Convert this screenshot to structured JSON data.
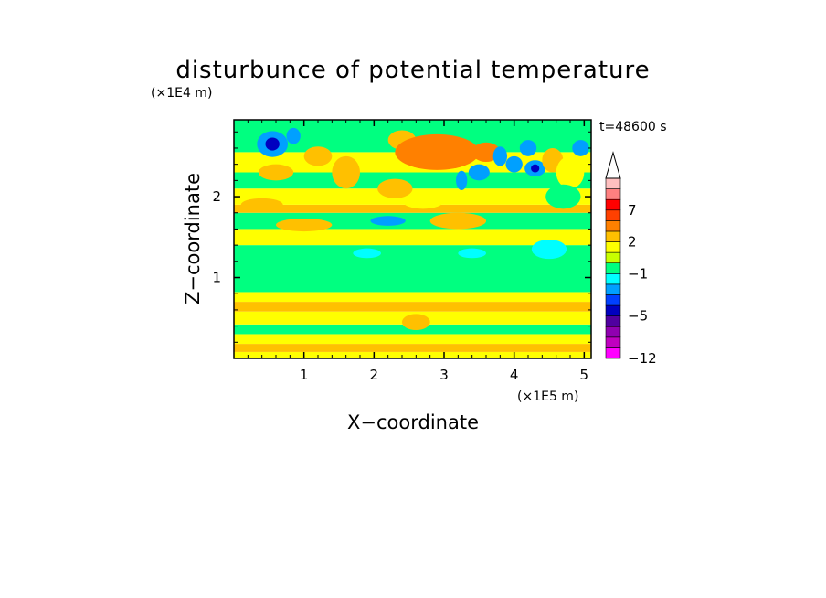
{
  "chart_data": {
    "type": "heatmap",
    "title": "disturbunce of potential temperature",
    "time_label": "t=48600 s",
    "xlabel": "X−coordinate",
    "ylabel": "Z−coordinate",
    "x_unit": "(×1E5 m)",
    "y_unit": "(×1E4 m)",
    "xlim": [
      0,
      5.1
    ],
    "ylim": [
      0,
      2.95
    ],
    "x_ticks": [
      1,
      2,
      3,
      4,
      5
    ],
    "x_tick_labels": [
      "1",
      "2",
      "3",
      "4",
      "5"
    ],
    "y_ticks": [
      1,
      2
    ],
    "y_tick_labels": [
      "1",
      "2"
    ],
    "x_minor_step": 0.2,
    "y_minor_step": 0.2,
    "bands": [
      {
        "z0": 0.0,
        "z1": 0.08,
        "level": 1
      },
      {
        "z0": 0.08,
        "z1": 0.18,
        "level": 2
      },
      {
        "z0": 0.18,
        "z1": 0.3,
        "level": 1
      },
      {
        "z0": 0.3,
        "z1": 0.42,
        "level": -1
      },
      {
        "z0": 0.42,
        "z1": 0.58,
        "level": 1
      },
      {
        "z0": 0.58,
        "z1": 0.7,
        "level": 2
      },
      {
        "z0": 0.7,
        "z1": 0.82,
        "level": 1
      },
      {
        "z0": 0.82,
        "z1": 1.4,
        "level": -1
      },
      {
        "z0": 1.4,
        "z1": 1.6,
        "level": 1
      },
      {
        "z0": 1.6,
        "z1": 1.8,
        "level": -1
      },
      {
        "z0": 1.8,
        "z1": 1.9,
        "level": 2
      },
      {
        "z0": 1.9,
        "z1": 2.1,
        "level": 1
      },
      {
        "z0": 2.1,
        "z1": 2.3,
        "level": -1
      },
      {
        "z0": 2.3,
        "z1": 2.55,
        "level": 1
      },
      {
        "z0": 2.55,
        "z1": 2.95,
        "level": -1
      }
    ],
    "features": [
      {
        "x": 0.55,
        "z": 2.65,
        "rx": 0.22,
        "rz": 0.16,
        "level": -3
      },
      {
        "x": 0.55,
        "z": 2.65,
        "rx": 0.1,
        "rz": 0.08,
        "level": -5
      },
      {
        "x": 0.85,
        "z": 2.75,
        "rx": 0.1,
        "rz": 0.1,
        "level": -3
      },
      {
        "x": 0.6,
        "z": 2.3,
        "rx": 0.25,
        "rz": 0.1,
        "level": 2
      },
      {
        "x": 1.2,
        "z": 2.5,
        "rx": 0.2,
        "rz": 0.12,
        "level": 2
      },
      {
        "x": 1.6,
        "z": 2.3,
        "rx": 0.2,
        "rz": 0.2,
        "level": 2
      },
      {
        "x": 2.3,
        "z": 2.1,
        "rx": 0.25,
        "rz": 0.12,
        "level": 2
      },
      {
        "x": 2.4,
        "z": 2.7,
        "rx": 0.2,
        "rz": 0.12,
        "level": 2
      },
      {
        "x": 2.9,
        "z": 2.55,
        "rx": 0.6,
        "rz": 0.22,
        "level": 3
      },
      {
        "x": 3.0,
        "z": 2.6,
        "rx": 0.35,
        "rz": 0.1,
        "level": 4
      },
      {
        "x": 3.6,
        "z": 2.55,
        "rx": 0.2,
        "rz": 0.12,
        "level": 3
      },
      {
        "x": 3.2,
        "z": 1.7,
        "rx": 0.4,
        "rz": 0.1,
        "level": 2
      },
      {
        "x": 2.2,
        "z": 1.7,
        "rx": 0.25,
        "rz": 0.06,
        "level": -3
      },
      {
        "x": 3.25,
        "z": 2.2,
        "rx": 0.08,
        "rz": 0.12,
        "level": -3
      },
      {
        "x": 3.5,
        "z": 2.3,
        "rx": 0.15,
        "rz": 0.1,
        "level": -3
      },
      {
        "x": 3.8,
        "z": 2.5,
        "rx": 0.1,
        "rz": 0.12,
        "level": -3
      },
      {
        "x": 4.0,
        "z": 2.4,
        "rx": 0.12,
        "rz": 0.1,
        "level": -3
      },
      {
        "x": 4.2,
        "z": 2.6,
        "rx": 0.12,
        "rz": 0.1,
        "level": -3
      },
      {
        "x": 4.3,
        "z": 2.35,
        "rx": 0.15,
        "rz": 0.1,
        "level": -3
      },
      {
        "x": 4.3,
        "z": 2.35,
        "rx": 0.06,
        "rz": 0.05,
        "level": -5
      },
      {
        "x": 4.55,
        "z": 2.45,
        "rx": 0.15,
        "rz": 0.15,
        "level": 2
      },
      {
        "x": 4.8,
        "z": 2.3,
        "rx": 0.2,
        "rz": 0.2,
        "level": 1
      },
      {
        "x": 4.95,
        "z": 2.6,
        "rx": 0.12,
        "rz": 0.1,
        "level": -3
      },
      {
        "x": 4.7,
        "z": 2.0,
        "rx": 0.25,
        "rz": 0.15,
        "level": -1
      },
      {
        "x": 4.5,
        "z": 1.35,
        "rx": 0.25,
        "rz": 0.12,
        "level": -2
      },
      {
        "x": 1.9,
        "z": 1.3,
        "rx": 0.2,
        "rz": 0.06,
        "level": -2
      },
      {
        "x": 3.4,
        "z": 1.3,
        "rx": 0.2,
        "rz": 0.06,
        "level": -2
      },
      {
        "x": 2.7,
        "z": 1.95,
        "rx": 0.3,
        "rz": 0.1,
        "level": 1
      },
      {
        "x": 1.0,
        "z": 1.65,
        "rx": 0.4,
        "rz": 0.08,
        "level": 2
      },
      {
        "x": 0.4,
        "z": 1.9,
        "rx": 0.3,
        "rz": 0.08,
        "level": 2
      },
      {
        "x": 2.6,
        "z": 0.45,
        "rx": 0.2,
        "rz": 0.1,
        "level": 2
      }
    ],
    "colorbar": {
      "levels": [
        -12,
        -10,
        -8,
        -6,
        -5,
        -4,
        -3,
        -2,
        -1,
        0,
        1,
        2,
        3,
        5,
        7,
        9,
        11,
        13
      ],
      "colors": [
        "#ff00ff",
        "#c000c0",
        "#9000b0",
        "#5000a0",
        "#0000c0",
        "#0040ff",
        "#00a0ff",
        "#00ffff",
        "#00ff80",
        "#c8ff00",
        "#ffff00",
        "#ffc000",
        "#ff8000",
        "#ff4000",
        "#ff0000",
        "#ff8080",
        "#ffc0c0"
      ],
      "labels": [
        {
          "value": -12,
          "text": "−12"
        },
        {
          "value": -5,
          "text": "−5"
        },
        {
          "value": -1,
          "text": "−1"
        },
        {
          "value": 2,
          "text": "2"
        },
        {
          "value": 7,
          "text": "7"
        }
      ]
    },
    "legend_position": "right"
  }
}
